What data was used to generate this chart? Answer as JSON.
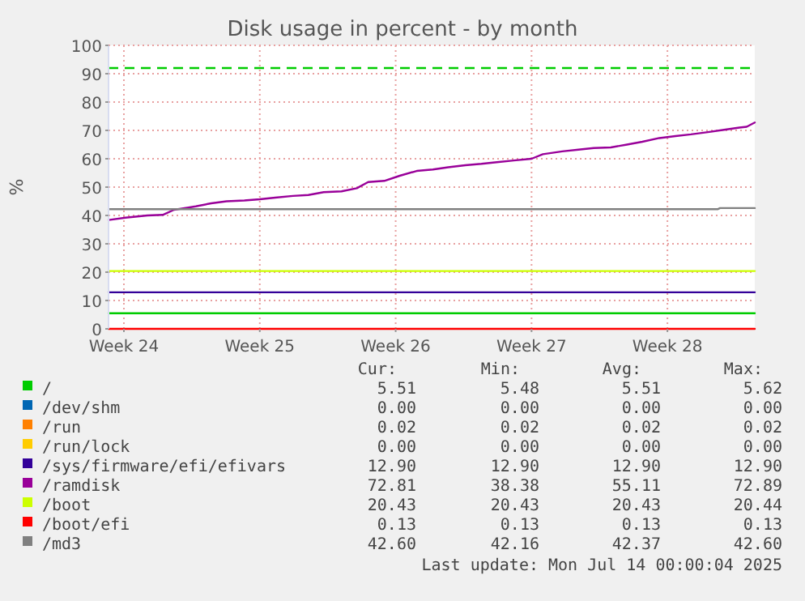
{
  "chart_data": {
    "type": "line",
    "title": "Disk usage in percent - by month",
    "ylabel": "%",
    "x": [
      "2025-06-10T17:00",
      "2025-07-14T00:00"
    ],
    "xlim": [
      "2025-06-10T17:00",
      "2025-07-14T00:00"
    ],
    "xticks": [
      {
        "value": "2025-06-11T12:00",
        "label": "Week 24"
      },
      {
        "value": "2025-06-18T12:00",
        "label": "Week 25"
      },
      {
        "value": "2025-06-25T12:00",
        "label": "Week 26"
      },
      {
        "value": "2025-07-02T12:00",
        "label": "Week 27"
      },
      {
        "value": "2025-07-09T12:00",
        "label": "Week 28"
      }
    ],
    "ylim": [
      0,
      100
    ],
    "yticks": [
      0,
      10,
      20,
      30,
      40,
      50,
      60,
      70,
      80,
      90,
      100
    ],
    "grid": true,
    "legend": "bottom",
    "marker": "none",
    "line_style": "solid",
    "ref_lines": [
      {
        "axis": "y",
        "value": 92,
        "color": "#00cc00",
        "line_style": "dashed"
      }
    ],
    "series": [
      {
        "name": "/",
        "color": "#00cc00",
        "values": [
          5.5,
          5.5
        ]
      },
      {
        "name": "/dev/shm",
        "color": "#0066b3",
        "values": [
          null,
          null
        ]
      },
      {
        "name": "/run",
        "color": "#ff8000",
        "values": [
          null,
          null
        ]
      },
      {
        "name": "/run/lock",
        "color": "#ffcc00",
        "values": [
          null,
          null
        ]
      },
      {
        "name": "/sys/firmware/efi/efivars",
        "color": "#330099",
        "values": [
          12.9,
          12.9
        ]
      },
      {
        "name": "/ramdisk",
        "color": "#990099",
        "x": [
          "2025-06-10T17:00",
          "2025-06-11T14:00",
          "2025-06-12T17:00",
          "2025-06-13T12:00",
          "2025-06-14T02:00",
          "2025-06-15T05:00",
          "2025-06-16T00:00",
          "2025-06-16T19:00",
          "2025-06-17T17:00",
          "2025-06-18T12:00",
          "2025-06-19T07:00",
          "2025-06-20T05:00",
          "2025-06-21T00:00",
          "2025-06-21T19:00",
          "2025-06-22T17:00",
          "2025-06-23T12:00",
          "2025-06-24T02:00",
          "2025-06-24T22:00",
          "2025-06-25T17:00",
          "2025-06-26T14:00",
          "2025-06-27T10:00",
          "2025-06-28T05:00",
          "2025-06-29T02:00",
          "2025-06-29T22:00",
          "2025-06-30T17:00",
          "2025-07-01T14:00",
          "2025-07-02T12:00",
          "2025-07-03T02:00",
          "2025-07-04T02:00",
          "2025-07-04T22:00",
          "2025-07-05T17:00",
          "2025-07-06T14:00",
          "2025-07-07T10:00",
          "2025-07-08T05:00",
          "2025-07-09T02:00",
          "2025-07-09T22:00",
          "2025-07-10T17:00",
          "2025-07-11T14:00",
          "2025-07-12T10:00",
          "2025-07-13T05:00",
          "2025-07-13T14:00",
          "2025-07-14T00:00"
        ],
        "values": [
          38.4,
          39.2,
          40,
          40.2,
          42,
          43.2,
          44.3,
          45,
          45.3,
          45.7,
          46.3,
          46.9,
          47.2,
          48.2,
          48.5,
          49.6,
          51.8,
          52.2,
          54,
          55.7,
          56.2,
          57,
          57.7,
          58.2,
          58.8,
          59.4,
          60,
          61.6,
          62.6,
          63.2,
          63.8,
          64,
          65,
          66,
          67.3,
          68,
          68.6,
          69.4,
          70.2,
          71,
          71.3,
          72.8
        ]
      },
      {
        "name": "/boot",
        "color": "#ccff00",
        "values": [
          20.4,
          20.4
        ]
      },
      {
        "name": "/boot/efi",
        "color": "#ff0000",
        "values": [
          0,
          0
        ]
      },
      {
        "name": "/md3",
        "color": "#808080",
        "x": [
          "2025-06-10T17:00",
          "2025-07-12T02:00",
          "2025-07-12T05:00",
          "2025-07-14T00:00"
        ],
        "values": [
          42.2,
          42.2,
          42.6,
          42.6
        ]
      }
    ],
    "annotations": [
      "Cur:",
      "Min:",
      "Avg:",
      "Max:",
      "5.51",
      "5.48",
      "5.51",
      "5.62",
      "0.00",
      "0.00",
      "0.00",
      "0.00",
      "0.02",
      "0.02",
      "0.02",
      "0.02",
      "0.00",
      "0.00",
      "0.00",
      "0.00",
      "12.90",
      "12.90",
      "12.90",
      "12.90",
      "72.81",
      "38.38",
      "55.11",
      "72.89",
      "20.43",
      "20.43",
      "20.43",
      "20.44",
      "0.13",
      "0.13",
      "0.13",
      "0.13",
      "42.60",
      "42.16",
      "42.37",
      "42.60",
      "Last update: Mon Jul 14 00:00:04 2025"
    ]
  }
}
